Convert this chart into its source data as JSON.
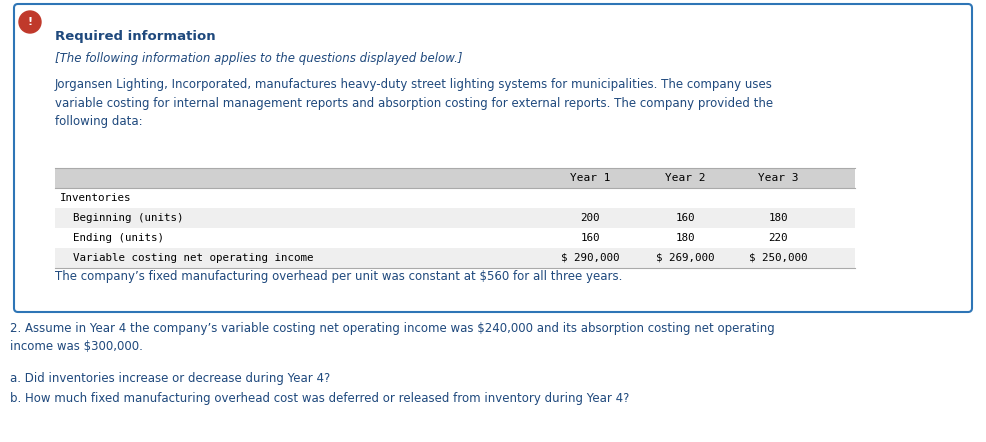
{
  "icon_color": "#c0392b",
  "icon_text": "!",
  "box_border_color": "#2e75b6",
  "box_bg_color": "#ffffff",
  "required_info_title": "Required information",
  "required_info_title_color": "#1f497d",
  "subtitle_italic": "[The following information applies to the questions displayed below.]",
  "subtitle_color": "#1f497d",
  "body_text_color": "#1f497d",
  "body_paragraph": "Jorgansen Lighting, Incorporated, manufactures heavy-duty street lighting systems for municipalities. The company uses\nvariable costing for internal management reports and absorption costing for external reports. The company provided the\nfollowing data:",
  "table_header": [
    "",
    "Year 1",
    "Year 2",
    "Year 3"
  ],
  "table_header_bg": "#d0d0d0",
  "table_rows": [
    [
      "Inventories",
      "",
      "",
      ""
    ],
    [
      "  Beginning (units)",
      "200",
      "160",
      "180"
    ],
    [
      "  Ending (units)",
      "160",
      "180",
      "220"
    ],
    [
      "  Variable costing net operating income",
      "$ 290,000",
      "$ 269,000",
      "$ 250,000"
    ]
  ],
  "table_font": "monospace",
  "footer_note": "The company’s fixed manufacturing overhead per unit was constant at $560 for all three years.",
  "footer_note_color": "#1f497d",
  "question2_text": "2. Assume in Year 4 the company’s variable costing net operating income was $240,000 and its absorption costing net operating\nincome was $300,000.",
  "question2_color": "#1f497d",
  "qa_text_a": "a. Did inventories increase or decrease during Year 4?",
  "qa_text_b": "b. How much fixed manufacturing overhead cost was deferred or released from inventory during Year 4?",
  "qa_color": "#1f497d",
  "bg_color": "#ffffff",
  "fig_width": 9.86,
  "fig_height": 4.42,
  "dpi": 100
}
